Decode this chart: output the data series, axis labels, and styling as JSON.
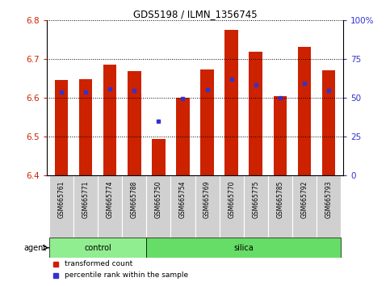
{
  "title": "GDS5198 / ILMN_1356745",
  "samples": [
    "GSM665761",
    "GSM665771",
    "GSM665774",
    "GSM665788",
    "GSM665750",
    "GSM665754",
    "GSM665769",
    "GSM665770",
    "GSM665775",
    "GSM665785",
    "GSM665792",
    "GSM665793"
  ],
  "groups": [
    "control",
    "control",
    "control",
    "control",
    "silica",
    "silica",
    "silica",
    "silica",
    "silica",
    "silica",
    "silica",
    "silica"
  ],
  "red_values": [
    6.645,
    6.648,
    6.685,
    6.668,
    6.495,
    6.6,
    6.672,
    6.775,
    6.718,
    6.605,
    6.732,
    6.67
  ],
  "blue_values": [
    6.615,
    6.615,
    6.622,
    6.618,
    6.54,
    6.598,
    6.62,
    6.648,
    6.634,
    6.6,
    6.638,
    6.618
  ],
  "ylim": [
    6.4,
    6.8
  ],
  "y_left_ticks": [
    6.4,
    6.5,
    6.6,
    6.7,
    6.8
  ],
  "y_right_ticks": [
    0,
    25,
    50,
    75,
    100
  ],
  "y_right_labels": [
    "0",
    "25",
    "50",
    "75",
    "100%"
  ],
  "bar_color": "#cc2200",
  "blue_color": "#3333cc",
  "bar_width": 0.55,
  "control_color": "#90ee90",
  "silica_color": "#66dd66",
  "legend_red": "transformed count",
  "legend_blue": "percentile rank within the sample",
  "n_control": 4,
  "n_silica": 8
}
